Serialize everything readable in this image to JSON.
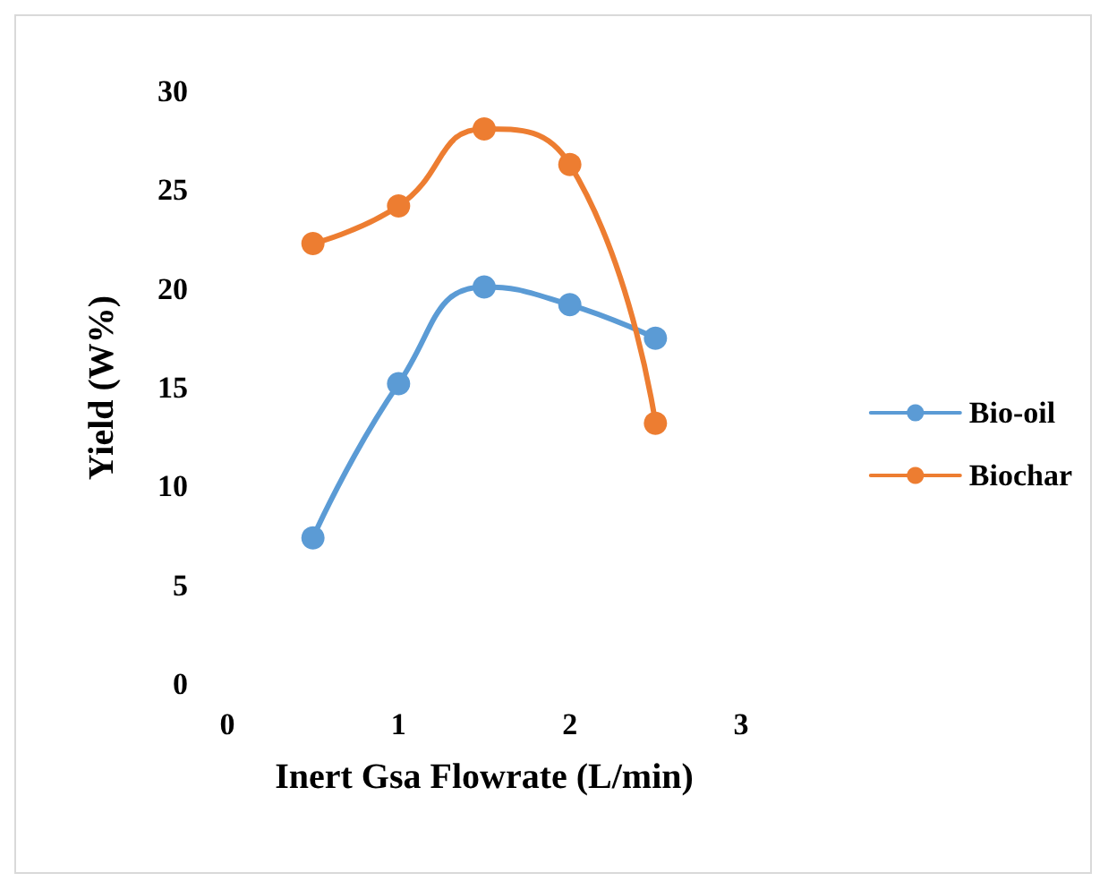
{
  "chart_data": {
    "type": "line",
    "xlabel": "Inert Gsa Flowrate (L/min)",
    "ylabel": "Yield (W%)",
    "x": [
      0.5,
      1,
      1.5,
      2,
      2.5
    ],
    "series": [
      {
        "name": "Bio-oil",
        "color": "#5b9bd5",
        "values": [
          7.4,
          15.2,
          20.1,
          19.2,
          17.5
        ]
      },
      {
        "name": "Biochar",
        "color": "#ed7d31",
        "values": [
          22.3,
          24.2,
          28.1,
          26.3,
          13.2
        ]
      }
    ],
    "xlim": [
      0,
      3
    ],
    "xticks": [
      0,
      1,
      2,
      3
    ],
    "ylim": [
      0,
      30
    ],
    "yticks": [
      0,
      5,
      10,
      15,
      20,
      25,
      30
    ],
    "grid": false,
    "legend": "right",
    "marker": "circle",
    "line_style": "solid"
  }
}
